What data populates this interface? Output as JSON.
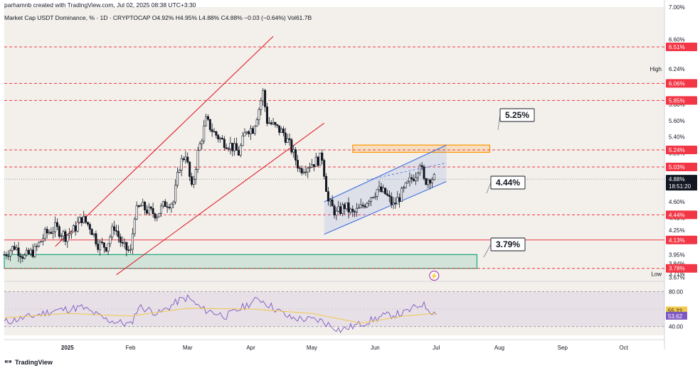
{
  "header": {
    "byline": "parhamnb created with TradingView.com, Jul 02, 2025 08:38 UTC+3:30"
  },
  "legend": {
    "symbol": "Market Cap USDT Dominance, % · 1D · CRYPTOCAP",
    "ohlc": "O4.92% H4.95% L4.88% C4.88% −0.03 (−0.64%) Vol61.7B"
  },
  "footer": {
    "brand": "TradingView"
  },
  "colors": {
    "panel_bg": "#f3f0eb",
    "up": "#131722",
    "down": "#131722",
    "channel_red": "#e0202a",
    "channel_blue": "#3f6fe0",
    "level_red": "#f23645",
    "green_zone": "#1aa37a",
    "orange_zone": "#ff9800",
    "rsi_line": "#7e57c2",
    "rsi_ma": "#f2c94c"
  },
  "annotations": {
    "box_525": "5.25%",
    "box_444": "4.44%",
    "box_379": "3.79%",
    "high_label": "High",
    "low_label": "Low"
  },
  "chart_data": {
    "type": "candlestick",
    "series_name": "Market Cap USDT Dominance, %",
    "interval": "1D",
    "ylim": [
      3.62,
      7.0
    ],
    "y_ticks": [
      "7.00%",
      "6.60%",
      "6.24%",
      "5.80%",
      "5.60%",
      "5.40%",
      "5.20%",
      "4.60%",
      "4.40%",
      "4.25%",
      "3.95%",
      "3.84%",
      "3.71%",
      "3.67%"
    ],
    "x_ticks": [
      "2025",
      "Feb",
      "Mar",
      "Apr",
      "May",
      "Jun",
      "Jul",
      "Aug",
      "Sep",
      "Oct"
    ],
    "x_range": [
      "2024-12-01",
      "2025-10-21"
    ],
    "price_tags": [
      {
        "label": "6.51%",
        "value": 6.51,
        "kind": "level"
      },
      {
        "label": "6.06%",
        "value": 6.06,
        "kind": "level"
      },
      {
        "label": "5.85%",
        "value": 5.85,
        "kind": "level"
      },
      {
        "label": "5.24%",
        "value": 5.24,
        "kind": "level"
      },
      {
        "label": "5.03%",
        "value": 5.03,
        "kind": "level"
      },
      {
        "label": "4.44%",
        "value": 4.44,
        "kind": "level"
      },
      {
        "label": "4.13%",
        "value": 4.13,
        "kind": "level"
      },
      {
        "label": "3.78%",
        "value": 3.78,
        "kind": "level"
      },
      {
        "label": "4.88%",
        "value": 4.88,
        "kind": "last"
      },
      {
        "label": "18:51:20",
        "value": 4.82,
        "kind": "countdown"
      }
    ],
    "high_value": "6.24%",
    "low_value": "3.71%",
    "horizontal_levels": [
      6.51,
      6.24,
      6.06,
      5.85,
      5.24,
      5.03,
      4.44,
      4.13,
      3.78
    ],
    "zones": [
      {
        "name": "3.79%",
        "from": 3.78,
        "to": 3.95
      },
      {
        "name": "5.25%",
        "from": 5.21,
        "to": 5.3
      }
    ],
    "close_series": [
      {
        "date": "2024-12-01",
        "close": 3.95
      },
      {
        "date": "2024-12-06",
        "close": 4.05
      },
      {
        "date": "2024-12-11",
        "close": 3.92
      },
      {
        "date": "2024-12-16",
        "close": 4.0
      },
      {
        "date": "2024-12-21",
        "close": 4.2
      },
      {
        "date": "2024-12-26",
        "close": 4.28
      },
      {
        "date": "2024-12-31",
        "close": 4.18
      },
      {
        "date": "2025-01-04",
        "close": 4.25
      },
      {
        "date": "2025-01-08",
        "close": 4.4
      },
      {
        "date": "2025-01-12",
        "close": 4.3
      },
      {
        "date": "2025-01-16",
        "close": 4.08
      },
      {
        "date": "2025-01-20",
        "close": 4.05
      },
      {
        "date": "2025-01-24",
        "close": 4.3
      },
      {
        "date": "2025-01-28",
        "close": 4.05
      },
      {
        "date": "2025-02-01",
        "close": 3.98
      },
      {
        "date": "2025-02-03",
        "close": 4.45
      },
      {
        "date": "2025-02-06",
        "close": 4.55
      },
      {
        "date": "2025-02-10",
        "close": 4.48
      },
      {
        "date": "2025-02-14",
        "close": 4.45
      },
      {
        "date": "2025-02-18",
        "close": 4.58
      },
      {
        "date": "2025-02-22",
        "close": 4.6
      },
      {
        "date": "2025-02-25",
        "close": 5.05
      },
      {
        "date": "2025-02-28",
        "close": 5.2
      },
      {
        "date": "2025-03-03",
        "close": 4.75
      },
      {
        "date": "2025-03-06",
        "close": 5.2
      },
      {
        "date": "2025-03-10",
        "close": 5.6
      },
      {
        "date": "2025-03-14",
        "close": 5.45
      },
      {
        "date": "2025-03-18",
        "close": 5.35
      },
      {
        "date": "2025-03-22",
        "close": 5.3
      },
      {
        "date": "2025-03-26",
        "close": 5.2
      },
      {
        "date": "2025-03-30",
        "close": 5.5
      },
      {
        "date": "2025-04-02",
        "close": 5.5
      },
      {
        "date": "2025-04-05",
        "close": 5.75
      },
      {
        "date": "2025-04-07",
        "close": 5.95
      },
      {
        "date": "2025-04-09",
        "close": 5.6
      },
      {
        "date": "2025-04-13",
        "close": 5.52
      },
      {
        "date": "2025-04-17",
        "close": 5.45
      },
      {
        "date": "2025-04-21",
        "close": 5.25
      },
      {
        "date": "2025-04-25",
        "close": 5.0
      },
      {
        "date": "2025-04-29",
        "close": 5.05
      },
      {
        "date": "2025-05-03",
        "close": 5.1
      },
      {
        "date": "2025-05-06",
        "close": 5.15
      },
      {
        "date": "2025-05-09",
        "close": 4.6
      },
      {
        "date": "2025-05-13",
        "close": 4.45
      },
      {
        "date": "2025-05-17",
        "close": 4.55
      },
      {
        "date": "2025-05-21",
        "close": 4.45
      },
      {
        "date": "2025-05-25",
        "close": 4.52
      },
      {
        "date": "2025-05-29",
        "close": 4.65
      },
      {
        "date": "2025-06-02",
        "close": 4.75
      },
      {
        "date": "2025-06-06",
        "close": 4.7
      },
      {
        "date": "2025-06-10",
        "close": 4.55
      },
      {
        "date": "2025-06-14",
        "close": 4.7
      },
      {
        "date": "2025-06-18",
        "close": 4.85
      },
      {
        "date": "2025-06-21",
        "close": 4.95
      },
      {
        "date": "2025-06-23",
        "close": 5.1
      },
      {
        "date": "2025-06-25",
        "close": 4.85
      },
      {
        "date": "2025-06-28",
        "close": 4.9
      },
      {
        "date": "2025-07-01",
        "close": 4.88
      }
    ],
    "rsi": {
      "name": "RSI",
      "ylim": [
        30,
        90
      ],
      "bands": [
        80,
        40
      ],
      "rsi_value": "53.62",
      "ma_value": "55.22",
      "y_ticks": [
        "80.00",
        "40.00"
      ],
      "rsi_series": [
        {
          "date": "2024-12-01",
          "value": 45
        },
        {
          "date": "2024-12-15",
          "value": 52
        },
        {
          "date": "2024-12-25",
          "value": 58
        },
        {
          "date": "2025-01-08",
          "value": 62
        },
        {
          "date": "2025-01-20",
          "value": 48
        },
        {
          "date": "2025-02-01",
          "value": 42
        },
        {
          "date": "2025-02-05",
          "value": 63
        },
        {
          "date": "2025-02-15",
          "value": 55
        },
        {
          "date": "2025-02-25",
          "value": 70
        },
        {
          "date": "2025-03-01",
          "value": 73
        },
        {
          "date": "2025-03-08",
          "value": 60
        },
        {
          "date": "2025-03-20",
          "value": 52
        },
        {
          "date": "2025-04-05",
          "value": 72
        },
        {
          "date": "2025-04-20",
          "value": 50
        },
        {
          "date": "2025-05-05",
          "value": 47
        },
        {
          "date": "2025-05-15",
          "value": 36
        },
        {
          "date": "2025-05-25",
          "value": 43
        },
        {
          "date": "2025-06-05",
          "value": 52
        },
        {
          "date": "2025-06-15",
          "value": 55
        },
        {
          "date": "2025-06-24",
          "value": 66
        },
        {
          "date": "2025-07-01",
          "value": 53.62
        }
      ],
      "ma_series": [
        {
          "date": "2024-12-01",
          "value": 50
        },
        {
          "date": "2025-01-01",
          "value": 55
        },
        {
          "date": "2025-02-01",
          "value": 52
        },
        {
          "date": "2025-03-01",
          "value": 61
        },
        {
          "date": "2025-04-01",
          "value": 60
        },
        {
          "date": "2025-05-01",
          "value": 55
        },
        {
          "date": "2025-05-25",
          "value": 44
        },
        {
          "date": "2025-06-15",
          "value": 52
        },
        {
          "date": "2025-07-01",
          "value": 55.22
        }
      ]
    },
    "channels": [
      {
        "name": "red-ascending-channel",
        "color": "red",
        "lines": [
          [
            {
              "date": "2024-12-26",
              "value": 4.05
            },
            {
              "date": "2025-04-12",
              "value": 6.64
            }
          ],
          [
            {
              "date": "2025-01-25",
              "value": 3.7
            },
            {
              "date": "2025-05-07",
              "value": 5.57
            }
          ]
        ]
      },
      {
        "name": "blue-ascending-channel",
        "color": "blue",
        "lines": [
          [
            {
              "date": "2025-05-07",
              "value": 4.6
            },
            {
              "date": "2025-07-06",
              "value": 5.3
            }
          ],
          [
            {
              "date": "2025-05-07",
              "value": 4.2
            },
            {
              "date": "2025-07-06",
              "value": 4.85
            }
          ]
        ]
      }
    ]
  }
}
